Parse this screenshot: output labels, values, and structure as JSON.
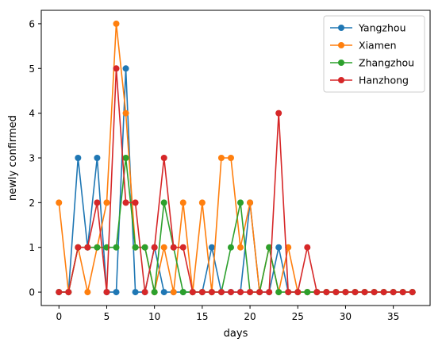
{
  "chart_data": {
    "type": "line",
    "title": "",
    "xlabel": "days",
    "ylabel": "newly confirmed",
    "xlim": [
      -1.85,
      38.85
    ],
    "ylim": [
      -0.3,
      6.3
    ],
    "xticks": [
      0,
      5,
      10,
      15,
      20,
      25,
      30,
      35
    ],
    "yticks": [
      0,
      1,
      2,
      3,
      4,
      5,
      6
    ],
    "grid": false,
    "legend_position": "top-right",
    "x": [
      0,
      1,
      2,
      3,
      4,
      5,
      6,
      7,
      8,
      9,
      10,
      11,
      12,
      13,
      14,
      15,
      16,
      17,
      18,
      19,
      20,
      21,
      22,
      23,
      24,
      25,
      26,
      27,
      28,
      29,
      30,
      31,
      32,
      33,
      34,
      35,
      36,
      37
    ],
    "series": [
      {
        "name": "Yangzhou",
        "color": "#1f77b4",
        "values": [
          0,
          0,
          3,
          1,
          3,
          0,
          0,
          5,
          0,
          0,
          1,
          0,
          0,
          0,
          0,
          0,
          1,
          0,
          0,
          0,
          2,
          0,
          0,
          1,
          0,
          0,
          0,
          0,
          0,
          0,
          0,
          0,
          0,
          0,
          0,
          0,
          0,
          0
        ]
      },
      {
        "name": "Xiamen",
        "color": "#ff7f0e",
        "values": [
          2,
          0,
          1,
          0,
          1,
          2,
          6,
          4,
          1,
          1,
          0,
          1,
          0,
          2,
          0,
          2,
          0,
          3,
          3,
          1,
          2,
          0,
          1,
          0,
          1,
          0,
          0,
          0,
          0,
          0,
          0,
          0,
          0,
          0,
          0,
          0,
          0,
          0
        ]
      },
      {
        "name": "Zhangzhou",
        "color": "#2ca02c",
        "values": [
          0,
          0,
          1,
          1,
          1,
          1,
          1,
          3,
          1,
          1,
          0,
          2,
          1,
          0,
          0,
          0,
          0,
          0,
          1,
          2,
          0,
          0,
          1,
          0,
          0,
          0,
          0,
          0,
          0,
          0,
          0,
          0,
          0,
          0,
          0,
          0,
          0,
          0
        ]
      },
      {
        "name": "Hanzhong",
        "color": "#d62728",
        "values": [
          0,
          0,
          1,
          1,
          2,
          0,
          5,
          2,
          2,
          0,
          1,
          3,
          1,
          1,
          0,
          0,
          0,
          0,
          0,
          0,
          0,
          0,
          0,
          4,
          0,
          0,
          1,
          0,
          0,
          0,
          0,
          0,
          0,
          0,
          0,
          0,
          0,
          0
        ]
      }
    ]
  }
}
